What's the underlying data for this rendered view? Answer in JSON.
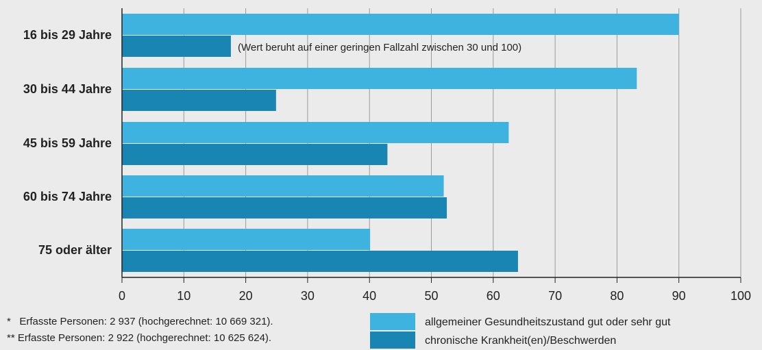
{
  "chart_data": {
    "type": "hbar",
    "categories": [
      "16 bis 29 Jahre",
      "30 bis 44 Jahre",
      "45 bis 59 Jahre",
      "60 bis 74 Jahre",
      "75 oder älter"
    ],
    "series": [
      {
        "name": "allgemeiner Gesundheitszustand gut oder sehr gut",
        "color": "#3fb3e0",
        "values": [
          90,
          83.2,
          62.5,
          52,
          40.1
        ]
      },
      {
        "name": "chronische Krankheit(en)/Beschwerden",
        "color": "#1985b2",
        "values": [
          17.6,
          24.9,
          42.9,
          52.5,
          64
        ]
      }
    ],
    "xlim": [
      0,
      100
    ],
    "xticks": [
      0,
      10,
      20,
      30,
      40,
      50,
      60,
      70,
      80,
      90,
      100
    ],
    "grid": true,
    "annotation": "(Wert beruht auf einer geringen Fallzahl zwischen 30 und 100)",
    "footnotes": [
      "*   Erfasste Personen: 2 937 (hochgerechnet: 10 669 321).",
      "** Erfasste Personen: 2 922 (hochgerechnet: 10 625 624)."
    ]
  }
}
